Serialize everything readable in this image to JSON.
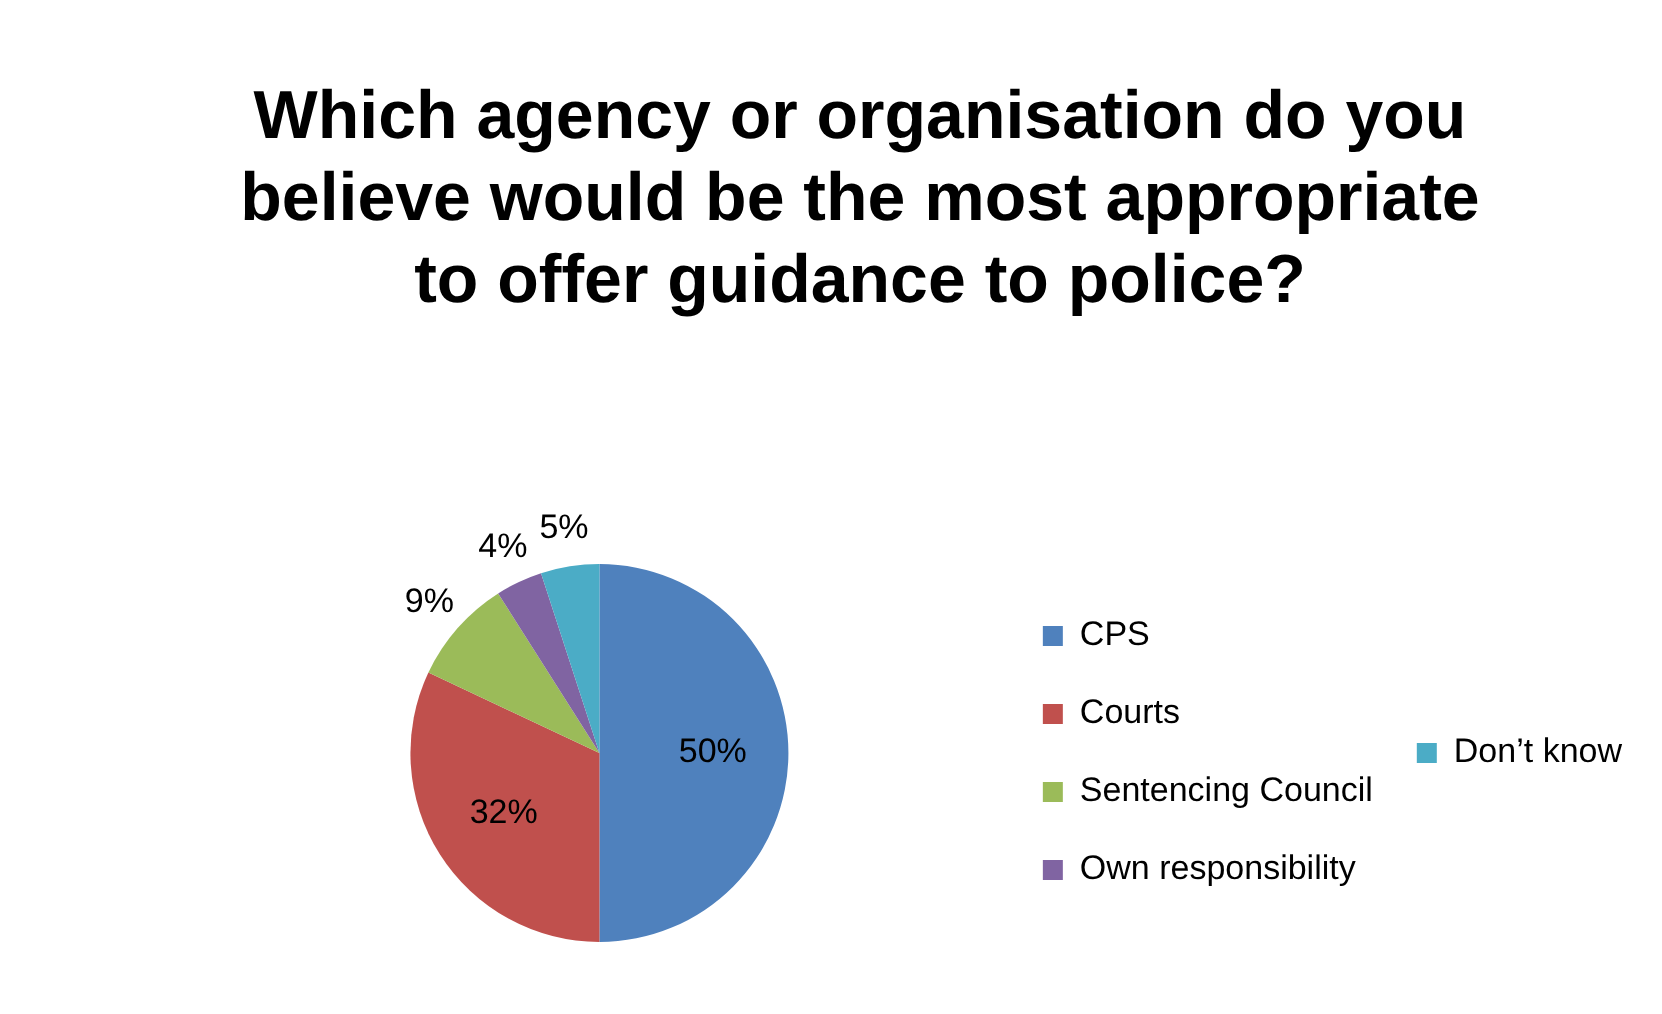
{
  "chart_data": {
    "type": "pie",
    "title": "Which agency or organisation do you believe would be the most appropriate to offer guidance to police?",
    "categories": [
      "CPS",
      "Courts",
      "Sentencing Council",
      "Own responsibility",
      "Don’t know"
    ],
    "values": [
      50,
      32,
      9,
      4,
      5
    ],
    "value_labels": [
      "50%",
      "32%",
      "9%",
      "4%",
      "5%"
    ],
    "colors": [
      "#4f81bd",
      "#c0504d",
      "#9bbb59",
      "#8064a2",
      "#4bacc6"
    ],
    "legend": "right"
  }
}
